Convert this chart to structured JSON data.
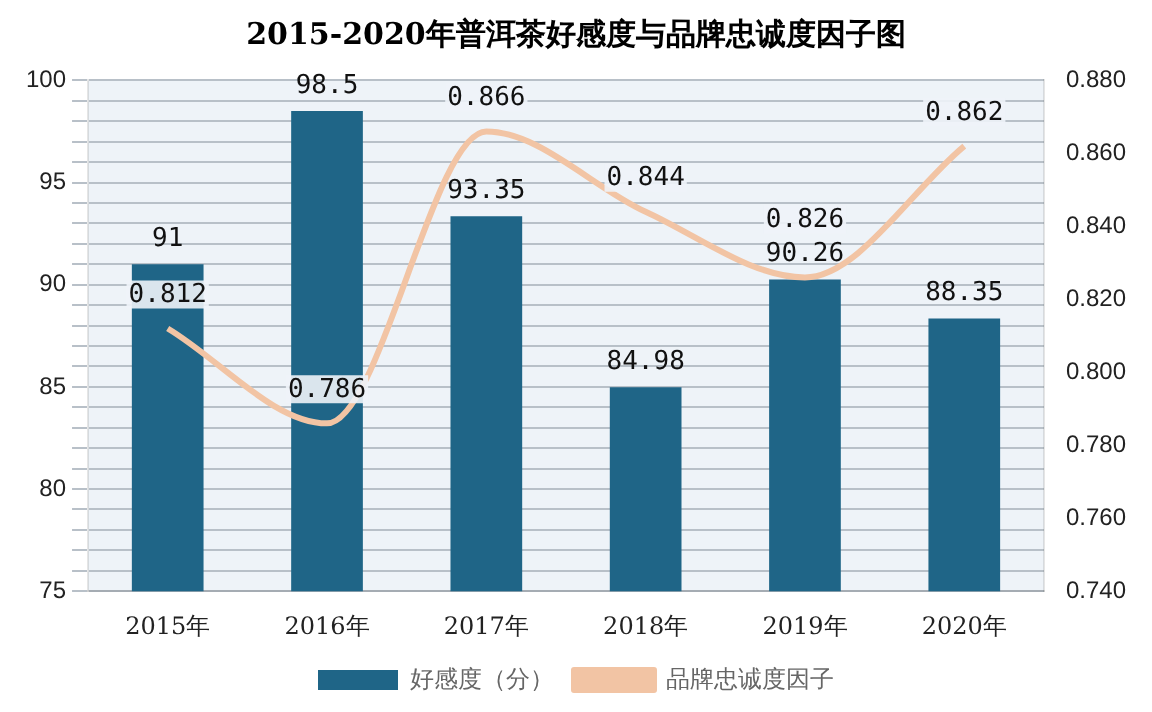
{
  "chart_data": {
    "type": "bar",
    "title": "2015-2020年普洱茶好感度与品牌忠诚度因子图",
    "categories": [
      "2015年",
      "2016年",
      "2017年",
      "2018年",
      "2019年",
      "2020年"
    ],
    "series": [
      {
        "name": "好感度（分）",
        "color": "#1f6587",
        "values": [
          91,
          98.5,
          93.35,
          84.98,
          90.26,
          88.35
        ]
      },
      {
        "name": "品牌忠诚度因子",
        "type": "line",
        "axis": "y2",
        "color": "#f2c4a4",
        "values": [
          0.812,
          0.786,
          0.866,
          0.844,
          0.826,
          0.862
        ]
      }
    ],
    "ylim": [
      75,
      100
    ],
    "yticks": [
      75,
      {
        "value": 76,
        "label": null
      },
      {
        "value": 77,
        "label": null
      },
      {
        "value": 78,
        "label": null
      },
      {
        "value": 79,
        "label": null
      },
      80,
      {
        "value": 81,
        "label": null
      },
      {
        "value": 82,
        "label": null
      },
      {
        "value": 83,
        "label": null
      },
      {
        "value": 84,
        "label": null
      },
      85,
      {
        "value": 86,
        "label": null
      },
      {
        "value": 87,
        "label": null
      },
      {
        "value": 88,
        "label": null
      },
      {
        "value": 89,
        "label": null
      },
      90,
      {
        "value": 91,
        "label": null
      },
      {
        "value": 92,
        "label": null
      },
      {
        "value": 93,
        "label": null
      },
      {
        "value": 94,
        "label": null
      },
      95,
      {
        "value": 96,
        "label": null
      },
      {
        "value": 97,
        "label": null
      },
      {
        "value": 98,
        "label": null
      },
      {
        "value": 99,
        "label": null
      },
      100
    ],
    "y2lim": [
      0.74,
      0.88
    ],
    "y2ticks": [
      {
        "value": 0.74,
        "label": "0.740"
      },
      {
        "value": 0.76,
        "label": "0.760"
      },
      {
        "value": 0.78,
        "label": "0.780"
      },
      {
        "value": 0.8,
        "label": "0.800"
      },
      {
        "value": 0.82,
        "label": "0.820"
      },
      {
        "value": 0.84,
        "label": "0.840"
      },
      {
        "value": 0.86,
        "label": "0.860"
      },
      {
        "value": 0.88,
        "label": "0.880"
      }
    ],
    "grid": "y",
    "legend": "bottom",
    "data_labels": true,
    "marker": "none"
  }
}
